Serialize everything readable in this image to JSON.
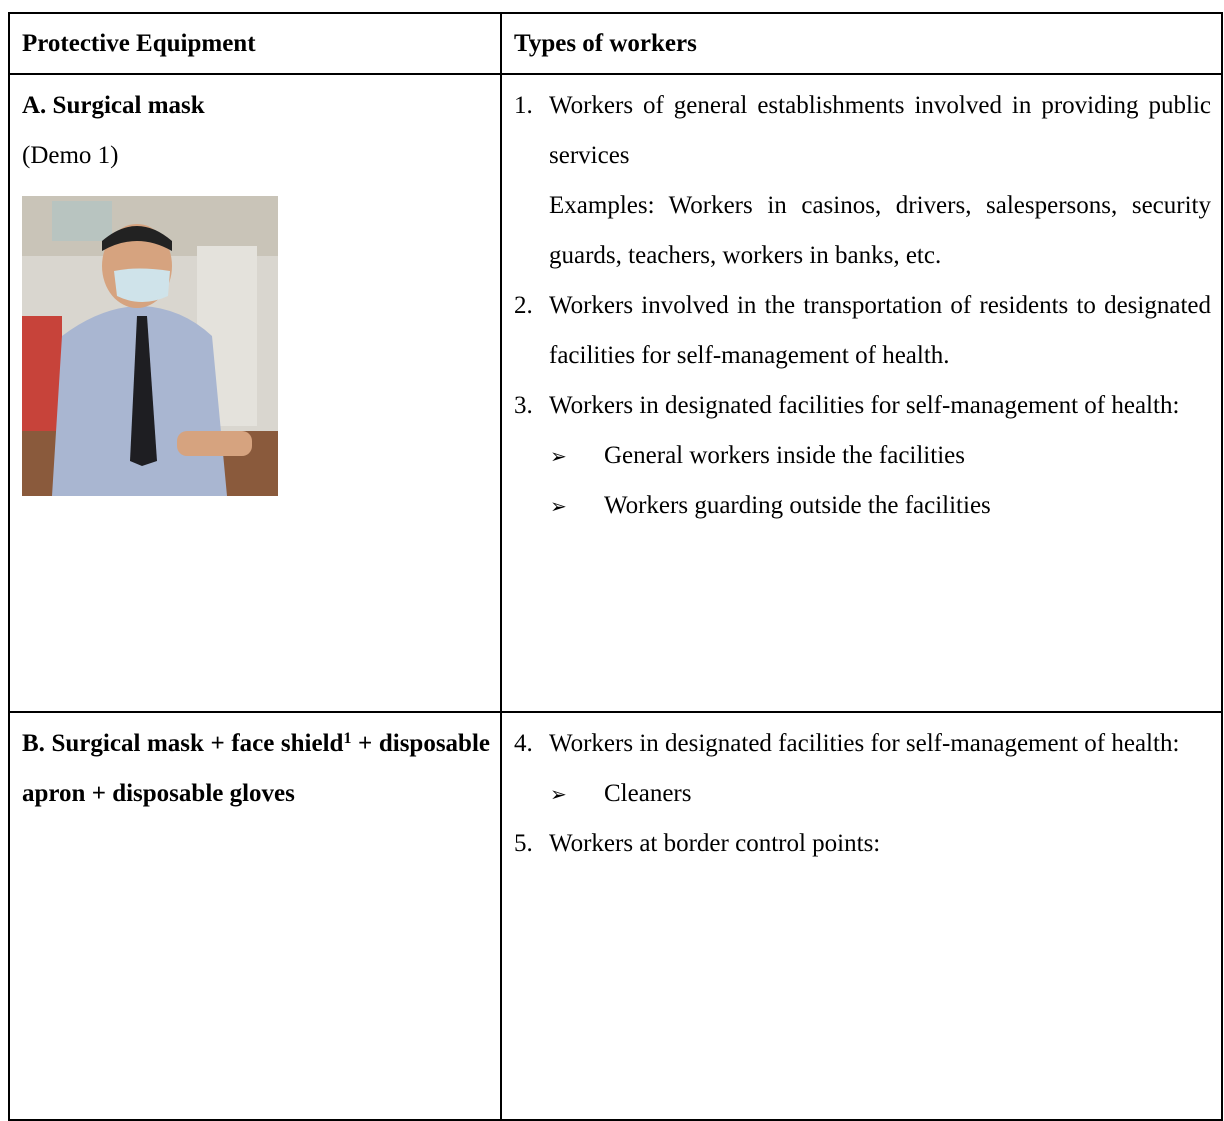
{
  "table": {
    "header": [
      "Protective Equipment",
      "Types of workers"
    ],
    "rows": [
      {
        "equipment": "A. Surgical mask",
        "note": "(Demo 1)",
        "items": [
          {
            "number": "1.",
            "text": "Workers of general establishments involved in providing public services",
            "examples": "Examples: Workers in casinos, drivers, salespersons, security guards, teachers, workers in banks, etc."
          },
          {
            "number": "2.",
            "text": "Workers involved in the transportation of residents to designated facilities for self-management of health."
          },
          {
            "number": "3.",
            "text": "Workers in designated facilities for self-management of health:",
            "bullets": [
              "General workers inside the facilities",
              "Workers guarding outside the facilities"
            ]
          }
        ]
      },
      {
        "equipment": "B. Surgical mask + face shield",
        "superscript": "1",
        "equipment_rest": " + disposable apron + disposable gloves",
        "items": [
          {
            "number": "4.",
            "text": "Workers in designated facilities for self-management of health:",
            "bullets": [
              "Cleaners"
            ]
          },
          {
            "number": "5.",
            "text": "Workers at border control points:"
          }
        ]
      }
    ]
  }
}
